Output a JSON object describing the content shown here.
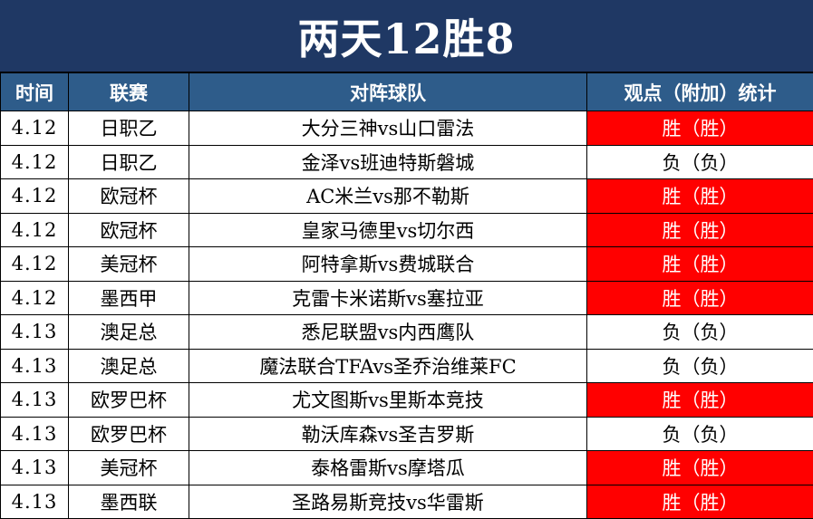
{
  "title": "两天12胜8",
  "headers": {
    "time": "时间",
    "league": "联赛",
    "match": "对阵球队",
    "stat": "观点（附加）统计"
  },
  "rows": [
    {
      "time": "4.12",
      "league": "日职乙",
      "match": "大分三神vs山口雷法",
      "result": "胜（胜）",
      "win": true
    },
    {
      "time": "4.12",
      "league": "日职乙",
      "match": "金泽vs班迪特斯磐城",
      "result": "负（负）",
      "win": false
    },
    {
      "time": "4.12",
      "league": "欧冠杯",
      "match": "AC米兰vs那不勒斯",
      "result": "胜（胜）",
      "win": true
    },
    {
      "time": "4.12",
      "league": "欧冠杯",
      "match": "皇家马德里vs切尔西",
      "result": "胜（胜）",
      "win": true
    },
    {
      "time": "4.12",
      "league": "美冠杯",
      "match": "阿特拿斯vs费城联合",
      "result": "胜（胜）",
      "win": true
    },
    {
      "time": "4.12",
      "league": "墨西甲",
      "match": "克雷卡米诺斯vs塞拉亚",
      "result": "胜（胜）",
      "win": true
    },
    {
      "time": "4.13",
      "league": "澳足总",
      "match": "悉尼联盟vs内西鹰队",
      "result": "负（负）",
      "win": false
    },
    {
      "time": "4.13",
      "league": "澳足总",
      "match": "魔法联合TFAvs圣乔治维莱FC",
      "result": "负（负）",
      "win": false
    },
    {
      "time": "4.13",
      "league": "欧罗巴杯",
      "match": "尤文图斯vs里斯本竞技",
      "result": "胜（胜）",
      "win": true
    },
    {
      "time": "4.13",
      "league": "欧罗巴杯",
      "match": "勒沃库森vs圣吉罗斯",
      "result": "负（负）",
      "win": false
    },
    {
      "time": "4.13",
      "league": "美冠杯",
      "match": "泰格雷斯vs摩塔瓜",
      "result": "胜（胜）",
      "win": true
    },
    {
      "time": "4.13",
      "league": "墨西联",
      "match": "圣路易斯竞技vs华雷斯",
      "result": "胜（胜）",
      "win": true
    }
  ],
  "colors": {
    "title_bg": "#1f3864",
    "header_bg": "#2e5c8a",
    "win_bg": "#ff0000"
  }
}
